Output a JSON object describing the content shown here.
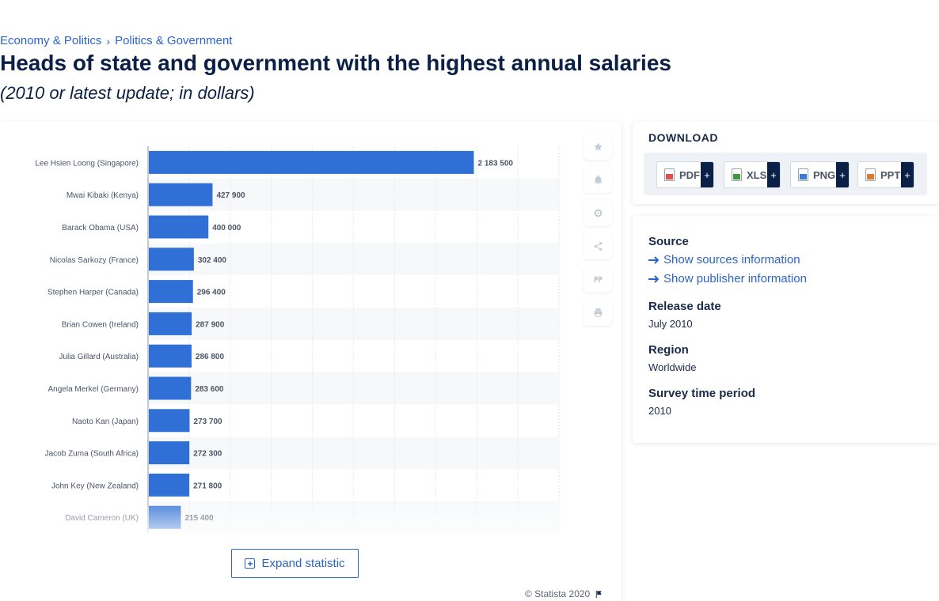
{
  "breadcrumb": {
    "level1": "Economy & Politics",
    "separator": "›",
    "level2": "Politics & Government"
  },
  "title": "Heads of state and government with the highest annual salaries",
  "subtitle": "(2010 or latest update; in dollars)",
  "chart_data": {
    "type": "bar",
    "orientation": "horizontal",
    "categories": [
      "Lee Hsien Loong (Singapore)",
      "Mwai Kibaki (Kenya)",
      "Barack Obama (USA)",
      "Nicolas Sarkozy (France)",
      "Stephen Harper (Canada)",
      "Brian Cowen (Ireland)",
      "Julia Gillard (Australia)",
      "Angela Merkel (Germany)",
      "Naoto Kan (Japan)",
      "Jacob Zuma (South Africa)",
      "John Key (New Zealand)",
      "David Cameron (UK)"
    ],
    "values": [
      2183500,
      427900,
      400000,
      302400,
      296400,
      287900,
      286800,
      283600,
      273700,
      272300,
      271800,
      215400
    ],
    "value_labels": [
      "2 183 500",
      "427 900",
      "400 000",
      "302 400",
      "296 400",
      "287 900",
      "286 800",
      "283 600",
      "273 700",
      "272 300",
      "271 800",
      "215 400"
    ],
    "xlim": [
      0,
      2500000
    ],
    "grid": true,
    "bar_color": "#2f6fd6"
  },
  "toolbar": {
    "favorite_icon": "star-icon",
    "notify_icon": "bell-icon",
    "settings_icon": "gear-icon",
    "share_icon": "share-icon",
    "cite_icon": "quote-icon",
    "print_icon": "print-icon"
  },
  "expand_label": "Expand statistic",
  "copyright": "© Statista 2020",
  "download": {
    "title": "DOWNLOAD",
    "buttons": [
      {
        "label": "PDF",
        "plus": "+",
        "color": "#d9534f"
      },
      {
        "label": "XLS",
        "plus": "+",
        "color": "#3c9a3c"
      },
      {
        "label": "PNG",
        "plus": "+",
        "color": "#3a7bd5"
      },
      {
        "label": "PPT",
        "plus": "+",
        "color": "#e07a2f"
      }
    ]
  },
  "info": {
    "source_heading": "Source",
    "sources_link": "Show sources information",
    "publisher_link": "Show publisher information",
    "release_heading": "Release date",
    "release_value": "July 2010",
    "region_heading": "Region",
    "region_value": "Worldwide",
    "period_heading": "Survey time period",
    "period_value": "2010"
  }
}
